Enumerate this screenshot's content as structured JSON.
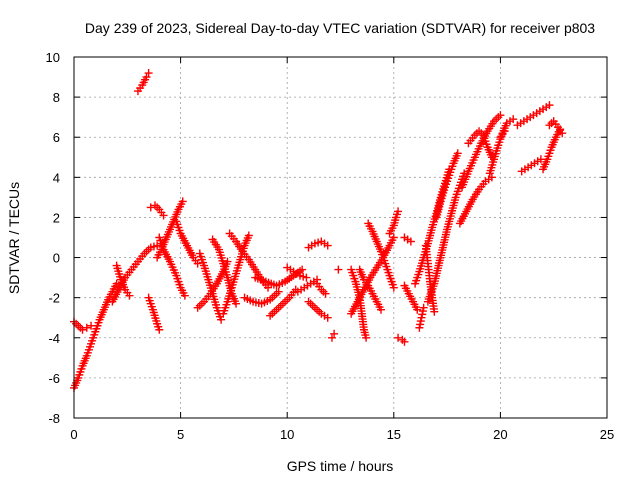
{
  "chart_data": {
    "type": "scatter",
    "title": "Day 239 of 2023, Sidereal Day-to-day VTEC variation (SDTVAR) for receiver p803",
    "xlabel": "GPS time / hours",
    "ylabel": "SDTVAR / TECUs",
    "xlim": [
      0,
      25
    ],
    "ylim": [
      -8,
      10
    ],
    "xticks": [
      0,
      5,
      10,
      15,
      20,
      25
    ],
    "yticks": [
      -8,
      -6,
      -4,
      -2,
      0,
      2,
      4,
      6,
      8,
      10
    ],
    "xtick_labels": [
      "0",
      "5",
      "10",
      "15",
      "20",
      "25"
    ],
    "ytick_labels": [
      "-8",
      "-6",
      "-4",
      "-2",
      "0",
      "2",
      "4",
      "6",
      "8",
      "10"
    ],
    "grid": true,
    "marker": "+",
    "color": "#ff0000",
    "segments": [
      {
        "name": "s01",
        "points": [
          [
            0.0,
            -6.5
          ],
          [
            0.2,
            -6.0
          ],
          [
            0.4,
            -5.4
          ],
          [
            0.6,
            -4.9
          ],
          [
            0.8,
            -4.3
          ],
          [
            1.0,
            -3.7
          ],
          [
            1.2,
            -3.1
          ],
          [
            1.4,
            -2.6
          ],
          [
            1.6,
            -2.1
          ],
          [
            1.8,
            -1.7
          ],
          [
            2.0,
            -1.3
          ]
        ]
      },
      {
        "name": "s02",
        "points": [
          [
            0.0,
            -3.2
          ],
          [
            0.2,
            -3.4
          ],
          [
            0.4,
            -3.6
          ],
          [
            0.6,
            -3.5
          ],
          [
            0.8,
            -3.4
          ]
        ]
      },
      {
        "name": "s03",
        "points": [
          [
            1.8,
            -2.2
          ],
          [
            2.1,
            -1.6
          ],
          [
            2.4,
            -1.0
          ],
          [
            2.7,
            -0.6
          ],
          [
            3.0,
            -0.2
          ],
          [
            3.3,
            0.2
          ],
          [
            3.6,
            0.5
          ],
          [
            3.9,
            0.6
          ]
        ]
      },
      {
        "name": "s04",
        "points": [
          [
            2.0,
            -0.4
          ],
          [
            2.2,
            -1.1
          ],
          [
            2.4,
            -1.6
          ],
          [
            2.6,
            -1.9
          ]
        ]
      },
      {
        "name": "s05",
        "points": [
          [
            3.0,
            8.3
          ],
          [
            3.2,
            8.6
          ],
          [
            3.4,
            9.0
          ],
          [
            3.5,
            9.2
          ]
        ]
      },
      {
        "name": "s06",
        "points": [
          [
            3.5,
            -2.0
          ],
          [
            3.7,
            -2.6
          ],
          [
            3.9,
            -3.3
          ],
          [
            4.0,
            -3.6
          ]
        ]
      },
      {
        "name": "s07",
        "points": [
          [
            3.6,
            2.5
          ],
          [
            3.8,
            2.6
          ],
          [
            4.0,
            2.4
          ],
          [
            4.2,
            2.1
          ]
        ]
      },
      {
        "name": "s08",
        "points": [
          [
            3.9,
            0.0
          ],
          [
            4.1,
            0.4
          ],
          [
            4.3,
            0.9
          ],
          [
            4.5,
            1.4
          ],
          [
            4.7,
            1.9
          ],
          [
            4.9,
            2.4
          ],
          [
            5.1,
            2.8
          ]
        ]
      },
      {
        "name": "s09",
        "points": [
          [
            4.0,
            1.0
          ],
          [
            4.2,
            0.4
          ],
          [
            4.5,
            -0.2
          ],
          [
            4.8,
            -0.9
          ],
          [
            5.0,
            -1.5
          ],
          [
            5.2,
            -1.9
          ]
        ]
      },
      {
        "name": "s10",
        "points": [
          [
            4.8,
            1.8
          ],
          [
            5.0,
            1.2
          ],
          [
            5.3,
            0.6
          ],
          [
            5.6,
            0.0
          ],
          [
            5.8,
            -0.3
          ]
        ]
      },
      {
        "name": "s11",
        "points": [
          [
            5.8,
            -2.5
          ],
          [
            6.1,
            -2.2
          ],
          [
            6.4,
            -1.8
          ],
          [
            6.7,
            -1.3
          ],
          [
            7.0,
            -0.7
          ],
          [
            7.2,
            -0.2
          ]
        ]
      },
      {
        "name": "s12",
        "points": [
          [
            5.9,
            0.2
          ],
          [
            6.1,
            -0.4
          ],
          [
            6.3,
            -1.1
          ],
          [
            6.5,
            -1.8
          ],
          [
            6.7,
            -2.5
          ],
          [
            6.9,
            -3.1
          ]
        ]
      },
      {
        "name": "s13",
        "points": [
          [
            6.5,
            0.9
          ],
          [
            6.8,
            0.4
          ],
          [
            7.0,
            -0.3
          ],
          [
            7.2,
            -1.0
          ],
          [
            7.4,
            -1.8
          ],
          [
            7.6,
            -2.3
          ]
        ]
      },
      {
        "name": "s14",
        "points": [
          [
            7.0,
            -2.8
          ],
          [
            7.2,
            -2.2
          ],
          [
            7.4,
            -1.5
          ],
          [
            7.6,
            -0.8
          ],
          [
            7.8,
            -0.1
          ],
          [
            8.0,
            0.6
          ],
          [
            8.2,
            1.1
          ]
        ]
      },
      {
        "name": "s15",
        "points": [
          [
            7.3,
            1.2
          ],
          [
            7.6,
            0.8
          ],
          [
            7.9,
            0.3
          ],
          [
            8.2,
            -0.1
          ],
          [
            8.5,
            -0.6
          ],
          [
            8.8,
            -1.1
          ],
          [
            9.1,
            -1.5
          ]
        ]
      },
      {
        "name": "s16",
        "points": [
          [
            8.0,
            -2.0
          ],
          [
            8.4,
            -2.2
          ],
          [
            8.8,
            -2.3
          ],
          [
            9.2,
            -2.1
          ],
          [
            9.6,
            -1.7
          ]
        ]
      },
      {
        "name": "s17",
        "points": [
          [
            8.5,
            -1.0
          ],
          [
            9.0,
            -1.2
          ],
          [
            9.5,
            -1.4
          ],
          [
            9.9,
            -1.2
          ],
          [
            10.3,
            -0.9
          ],
          [
            10.7,
            -0.6
          ]
        ]
      },
      {
        "name": "s18",
        "points": [
          [
            9.2,
            -2.9
          ],
          [
            9.5,
            -2.6
          ],
          [
            9.8,
            -2.3
          ],
          [
            10.1,
            -2.0
          ],
          [
            10.4,
            -1.6
          ]
        ]
      },
      {
        "name": "s19",
        "points": [
          [
            10.5,
            -1.7
          ],
          [
            10.8,
            -1.5
          ],
          [
            11.1,
            -1.3
          ],
          [
            11.4,
            -1.1
          ]
        ]
      },
      {
        "name": "s20",
        "points": [
          [
            10.0,
            -0.5
          ],
          [
            10.3,
            -0.7
          ],
          [
            10.6,
            -0.9
          ],
          [
            10.9,
            -1.0
          ]
        ]
      },
      {
        "name": "s21",
        "points": [
          [
            11.0,
            -2.2
          ],
          [
            11.3,
            -2.5
          ],
          [
            11.6,
            -2.8
          ],
          [
            11.9,
            -3.0
          ]
        ]
      },
      {
        "name": "s22",
        "points": [
          [
            11.0,
            0.5
          ],
          [
            11.3,
            0.7
          ],
          [
            11.6,
            0.8
          ],
          [
            11.9,
            0.6
          ]
        ]
      },
      {
        "name": "s23",
        "points": [
          [
            11.4,
            -1.3
          ],
          [
            11.6,
            -1.6
          ],
          [
            11.8,
            -1.8
          ]
        ]
      },
      {
        "name": "s24",
        "points": [
          [
            12.1,
            -4.0
          ],
          [
            12.2,
            -3.8
          ]
        ]
      },
      {
        "name": "s25",
        "points": [
          [
            12.4,
            -0.6
          ]
        ]
      },
      {
        "name": "s26",
        "points": [
          [
            13.0,
            -2.8
          ],
          [
            13.3,
            -2.2
          ],
          [
            13.6,
            -1.6
          ],
          [
            13.9,
            -1.0
          ],
          [
            14.2,
            -0.5
          ],
          [
            14.5,
            0.0
          ],
          [
            14.8,
            0.6
          ],
          [
            15.0,
            1.0
          ]
        ]
      },
      {
        "name": "s27",
        "points": [
          [
            13.0,
            -0.6
          ],
          [
            13.2,
            -1.2
          ],
          [
            13.4,
            -2.0
          ],
          [
            13.5,
            -2.8
          ],
          [
            13.6,
            -3.6
          ],
          [
            13.7,
            -4.0
          ]
        ]
      },
      {
        "name": "s28",
        "points": [
          [
            13.4,
            -0.6
          ],
          [
            13.6,
            -1.1
          ],
          [
            13.8,
            -1.4
          ],
          [
            14.0,
            -1.8
          ],
          [
            14.2,
            -2.2
          ],
          [
            14.4,
            -2.6
          ]
        ]
      },
      {
        "name": "s29",
        "points": [
          [
            13.8,
            1.7
          ],
          [
            14.0,
            1.3
          ],
          [
            14.2,
            0.8
          ],
          [
            14.4,
            0.3
          ],
          [
            14.6,
            -0.3
          ],
          [
            14.8,
            -0.9
          ],
          [
            15.0,
            -1.5
          ]
        ]
      },
      {
        "name": "s30",
        "points": [
          [
            14.8,
            1.2
          ],
          [
            15.0,
            1.6
          ],
          [
            15.1,
            2.0
          ],
          [
            15.2,
            2.3
          ]
        ]
      },
      {
        "name": "s31",
        "points": [
          [
            15.2,
            -4.0
          ],
          [
            15.4,
            -4.1
          ],
          [
            15.5,
            -4.2
          ]
        ]
      },
      {
        "name": "s32",
        "points": [
          [
            15.5,
            -1.4
          ],
          [
            15.7,
            -1.8
          ],
          [
            15.9,
            -2.2
          ],
          [
            16.1,
            -2.6
          ]
        ]
      },
      {
        "name": "s33",
        "points": [
          [
            15.5,
            1.0
          ],
          [
            15.8,
            0.8
          ]
        ]
      },
      {
        "name": "s34",
        "points": [
          [
            16.0,
            -1.3
          ],
          [
            16.2,
            -0.7
          ],
          [
            16.4,
            0.0
          ],
          [
            16.6,
            0.7
          ],
          [
            16.8,
            1.5
          ],
          [
            17.0,
            2.2
          ],
          [
            17.2,
            3.0
          ],
          [
            17.4,
            3.7
          ],
          [
            17.6,
            4.4
          ]
        ]
      },
      {
        "name": "s35",
        "points": [
          [
            16.2,
            -3.5
          ],
          [
            16.3,
            -3.0
          ],
          [
            16.4,
            -2.5
          ]
        ]
      },
      {
        "name": "s36",
        "points": [
          [
            16.5,
            0.6
          ],
          [
            16.6,
            -0.3
          ],
          [
            16.7,
            -1.2
          ],
          [
            16.8,
            -2.0
          ],
          [
            16.9,
            -2.7
          ]
        ]
      },
      {
        "name": "s37",
        "points": [
          [
            16.6,
            -2.2
          ],
          [
            16.9,
            -1.3
          ],
          [
            17.1,
            -0.4
          ],
          [
            17.3,
            0.5
          ],
          [
            17.5,
            1.4
          ],
          [
            17.7,
            2.2
          ],
          [
            17.9,
            3.0
          ],
          [
            18.1,
            3.6
          ],
          [
            18.3,
            4.2
          ]
        ]
      },
      {
        "name": "s38",
        "points": [
          [
            17.0,
            2.0
          ],
          [
            17.2,
            2.8
          ],
          [
            17.4,
            3.5
          ],
          [
            17.6,
            4.1
          ],
          [
            17.8,
            4.7
          ],
          [
            18.0,
            5.2
          ]
        ]
      },
      {
        "name": "s39",
        "points": [
          [
            18.1,
            1.7
          ],
          [
            18.4,
            2.3
          ],
          [
            18.7,
            2.9
          ],
          [
            19.0,
            3.4
          ],
          [
            19.3,
            3.8
          ],
          [
            19.6,
            4.0
          ]
        ]
      },
      {
        "name": "s40",
        "points": [
          [
            18.2,
            3.5
          ],
          [
            18.5,
            4.3
          ],
          [
            18.8,
            5.0
          ],
          [
            19.1,
            5.7
          ],
          [
            19.4,
            6.3
          ],
          [
            19.7,
            6.8
          ],
          [
            20.0,
            7.1
          ]
        ]
      },
      {
        "name": "s41",
        "points": [
          [
            18.5,
            5.7
          ],
          [
            18.8,
            6.1
          ],
          [
            19.0,
            6.3
          ],
          [
            19.2,
            6.1
          ],
          [
            19.4,
            5.5
          ],
          [
            19.6,
            5.0
          ]
        ]
      },
      {
        "name": "s42",
        "points": [
          [
            19.5,
            4.2
          ],
          [
            19.7,
            4.9
          ],
          [
            19.9,
            5.6
          ],
          [
            20.1,
            6.2
          ],
          [
            20.3,
            6.7
          ],
          [
            20.6,
            6.9
          ]
        ]
      },
      {
        "name": "s43",
        "points": [
          [
            20.0,
            6.0
          ],
          [
            20.2,
            6.3
          ]
        ]
      },
      {
        "name": "s44",
        "points": [
          [
            20.8,
            6.6
          ],
          [
            21.1,
            6.8
          ],
          [
            21.4,
            7.0
          ],
          [
            21.7,
            7.2
          ],
          [
            22.0,
            7.4
          ],
          [
            22.3,
            7.6
          ]
        ]
      },
      {
        "name": "s45",
        "points": [
          [
            21.0,
            4.3
          ],
          [
            21.3,
            4.5
          ],
          [
            21.6,
            4.7
          ],
          [
            21.9,
            4.9
          ]
        ]
      },
      {
        "name": "s46",
        "points": [
          [
            22.0,
            4.4
          ],
          [
            22.2,
            4.9
          ],
          [
            22.4,
            5.5
          ],
          [
            22.6,
            6.0
          ],
          [
            22.8,
            6.4
          ]
        ]
      },
      {
        "name": "s47",
        "points": [
          [
            22.3,
            6.6
          ],
          [
            22.5,
            6.8
          ],
          [
            22.7,
            6.5
          ],
          [
            22.9,
            6.2
          ]
        ]
      }
    ]
  }
}
